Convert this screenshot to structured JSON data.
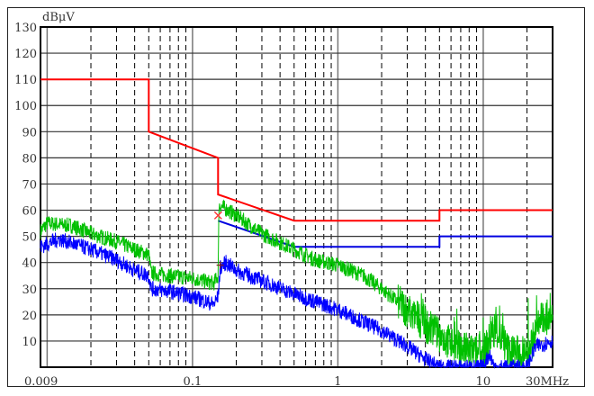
{
  "chart_data": {
    "type": "line",
    "ylabel": "dBμV",
    "xunit_label": "30MHz",
    "x_scale": "log",
    "xlim": [
      0.009,
      30
    ],
    "ylim": [
      0,
      130
    ],
    "grid": true,
    "yticks": [
      10,
      20,
      30,
      40,
      50,
      60,
      70,
      80,
      90,
      100,
      110,
      120,
      130
    ],
    "xtick_labels": [
      {
        "value": 0.009,
        "label": "0.009"
      },
      {
        "value": 0.1,
        "label": "0.1"
      },
      {
        "value": 1,
        "label": "1"
      },
      {
        "value": 10,
        "label": "10"
      },
      {
        "value": 30,
        "label": "30MHz"
      }
    ],
    "series": [
      {
        "color": "#ff0000",
        "kind": "limit",
        "x": [
          0.009,
          0.05,
          0.05,
          0.15,
          0.15,
          0.5,
          5,
          5,
          30
        ],
        "y": [
          110,
          110,
          90,
          80,
          66,
          56,
          56,
          60,
          60
        ]
      },
      {
        "color": "#0000e0",
        "kind": "limit",
        "x": [
          0.15,
          0.5,
          5,
          5,
          30
        ],
        "y": [
          56,
          46,
          46,
          50,
          50
        ]
      },
      {
        "color": "#00c000",
        "kind": "trace",
        "x": [
          0.009,
          0.01,
          0.015,
          0.02,
          0.03,
          0.04,
          0.05,
          0.052,
          0.07,
          0.1,
          0.14,
          0.15,
          0.152,
          0.2,
          0.3,
          0.5,
          0.7,
          1,
          1.5,
          2,
          3,
          5,
          7,
          10,
          12,
          15,
          20,
          25,
          30
        ],
        "y": [
          52,
          55,
          54,
          51,
          48,
          45,
          43,
          36,
          35,
          34,
          32,
          35,
          62,
          58,
          51,
          45,
          41,
          39,
          35,
          30,
          22,
          12,
          7,
          5,
          15,
          6,
          5,
          18,
          20
        ]
      },
      {
        "color": "#0000ff",
        "kind": "trace",
        "x": [
          0.009,
          0.012,
          0.02,
          0.03,
          0.04,
          0.05,
          0.052,
          0.07,
          0.1,
          0.14,
          0.15,
          0.155,
          0.17,
          0.2,
          0.3,
          0.5,
          1,
          2,
          3,
          4,
          5,
          10,
          11,
          12,
          20,
          23,
          30
        ],
        "y": [
          46,
          49,
          45,
          41,
          37,
          35,
          30,
          29,
          27,
          24,
          27,
          38,
          40,
          37,
          33,
          28,
          22,
          14,
          8,
          3,
          0,
          0,
          5,
          0,
          0,
          8,
          10
        ]
      }
    ],
    "markers": [
      {
        "x": 0.15,
        "y": 58,
        "symbol": "x",
        "color": "#ff3030"
      },
      {
        "x": 0.155,
        "y": 39,
        "symbol": "+",
        "color": "#802020"
      }
    ]
  }
}
